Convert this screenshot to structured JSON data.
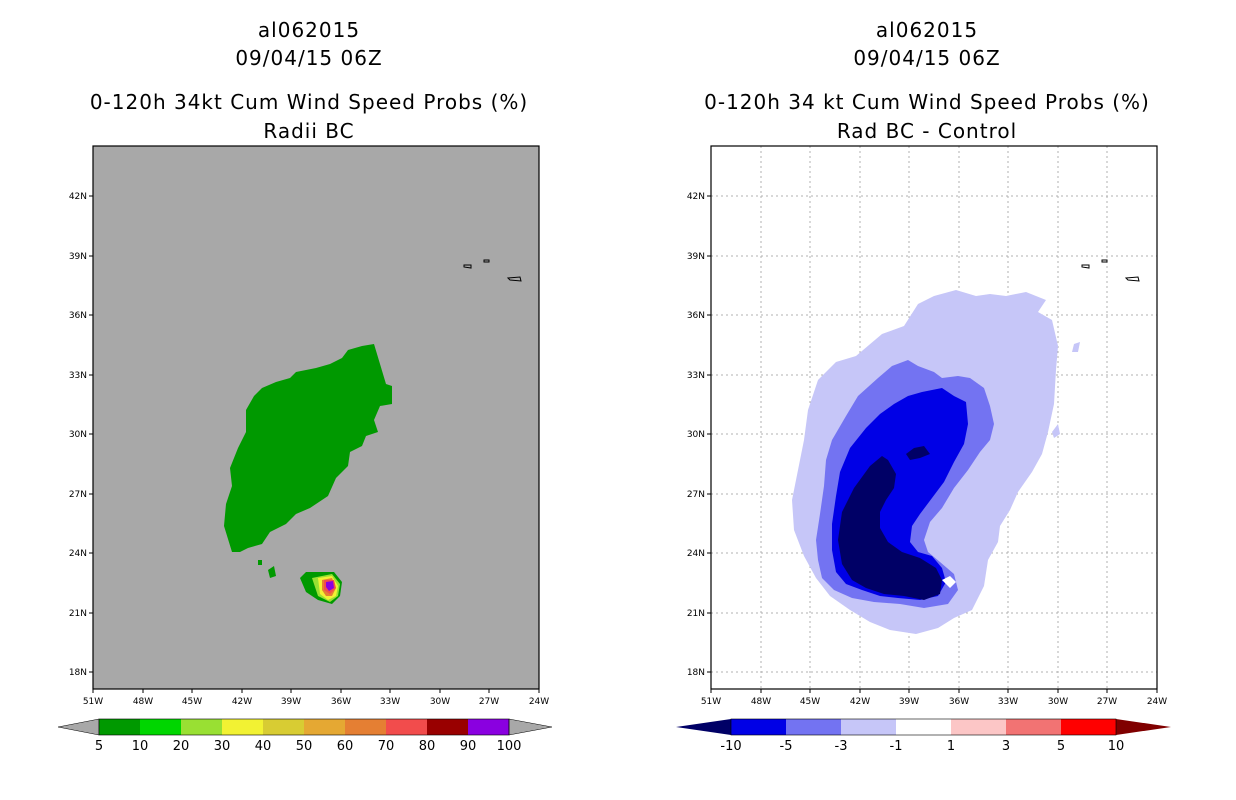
{
  "left": {
    "storm_id": "al062015",
    "datetime": "09/04/15 06Z",
    "title": "0-120h 34kt Cum Wind Speed Probs (%)",
    "subtitle": "Radii BC",
    "lat_labels": [
      "42N",
      "39N",
      "36N",
      "33N",
      "30N",
      "27N",
      "24N",
      "21N",
      "18N"
    ],
    "lon_labels": [
      "51W",
      "48W",
      "45W",
      "42W",
      "39W",
      "36W",
      "33W",
      "30W",
      "27W",
      "24W"
    ],
    "colorbar": {
      "labels": [
        "5",
        "10",
        "20",
        "30",
        "40",
        "50",
        "60",
        "70",
        "80",
        "90",
        "100"
      ],
      "colors": [
        "#009900",
        "#00d600",
        "#99e033",
        "#f2f233",
        "#d8cc33",
        "#e5a833",
        "#e57f33",
        "#f24c4c",
        "#990000",
        "#8a00e0"
      ],
      "end_left": "#a8a8a8",
      "end_right": "#a8a8a8"
    },
    "background_color": "#a8a8a8"
  },
  "right": {
    "storm_id": "al062015",
    "datetime": "09/04/15 06Z",
    "title": "0-120h 34 kt Cum Wind Speed Probs (%)",
    "subtitle": "Rad BC - Control",
    "lat_labels": [
      "42N",
      "39N",
      "36N",
      "33N",
      "30N",
      "27N",
      "24N",
      "21N",
      "18N"
    ],
    "lon_labels": [
      "51W",
      "48W",
      "45W",
      "42W",
      "39W",
      "36W",
      "33W",
      "30W",
      "27W",
      "24W"
    ],
    "colorbar": {
      "labels": [
        "-10",
        "-5",
        "-3",
        "-1",
        "1",
        "3",
        "5",
        "10"
      ],
      "colors": [
        "#0000e6",
        "#7373f2",
        "#c6c6f8",
        "#ffffff",
        "#fcc6c6",
        "#f27373",
        "#ff0000"
      ],
      "end_left": "#000066",
      "end_right": "#800000"
    },
    "background_color": "#ffffff"
  }
}
